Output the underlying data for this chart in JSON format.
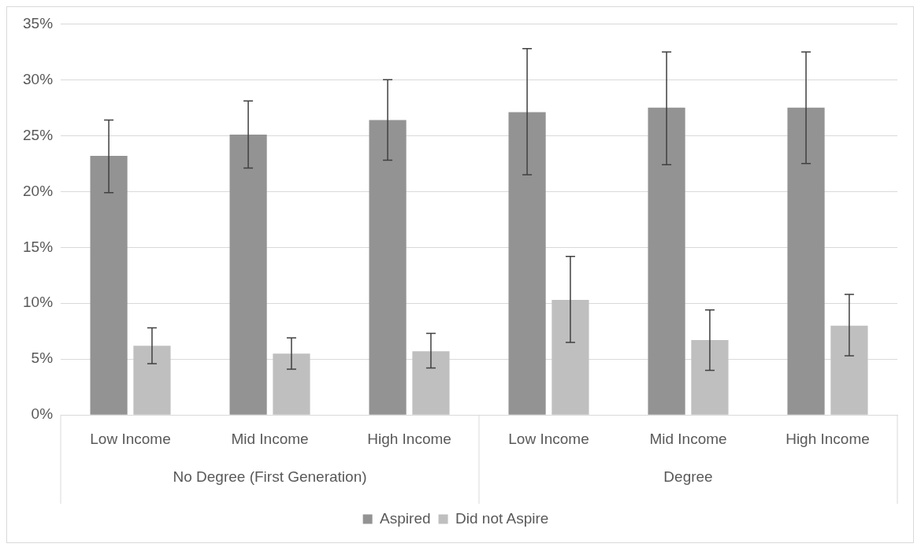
{
  "chart_data": {
    "type": "bar",
    "categories": [
      "Low Income",
      "Mid Income",
      "High Income",
      "Low Income",
      "Mid Income",
      "High Income"
    ],
    "annotations": [
      "No Degree (First Generation)",
      "Degree"
    ],
    "series": [
      {
        "name": "Aspired",
        "color": "#939393",
        "values": [
          23.2,
          25.1,
          26.4,
          27.1,
          27.5,
          27.5
        ],
        "errors": [
          [
            19.9,
            26.4
          ],
          [
            22.1,
            28.1
          ],
          [
            22.8,
            30.0
          ],
          [
            21.5,
            32.8
          ],
          [
            22.4,
            32.5
          ],
          [
            22.5,
            32.5
          ]
        ]
      },
      {
        "name": "Did not Aspire",
        "color": "#bfbfbf",
        "values": [
          6.2,
          5.5,
          5.7,
          10.3,
          6.7,
          8.0
        ],
        "errors": [
          [
            4.6,
            7.8
          ],
          [
            4.1,
            6.9
          ],
          [
            4.2,
            7.3
          ],
          [
            6.5,
            14.2
          ],
          [
            4.0,
            9.4
          ],
          [
            5.3,
            10.8
          ]
        ]
      }
    ],
    "ylim": [
      0,
      35
    ],
    "yticks": [
      {
        "value": 0,
        "label": "0%"
      },
      {
        "value": 5,
        "label": "5%"
      },
      {
        "value": 10,
        "label": "10%"
      },
      {
        "value": 15,
        "label": "15%"
      },
      {
        "value": 20,
        "label": "20%"
      },
      {
        "value": 25,
        "label": "25%"
      },
      {
        "value": 30,
        "label": "30%"
      },
      {
        "value": 35,
        "label": "35%"
      }
    ],
    "grid": "y",
    "legend": "bottom"
  }
}
